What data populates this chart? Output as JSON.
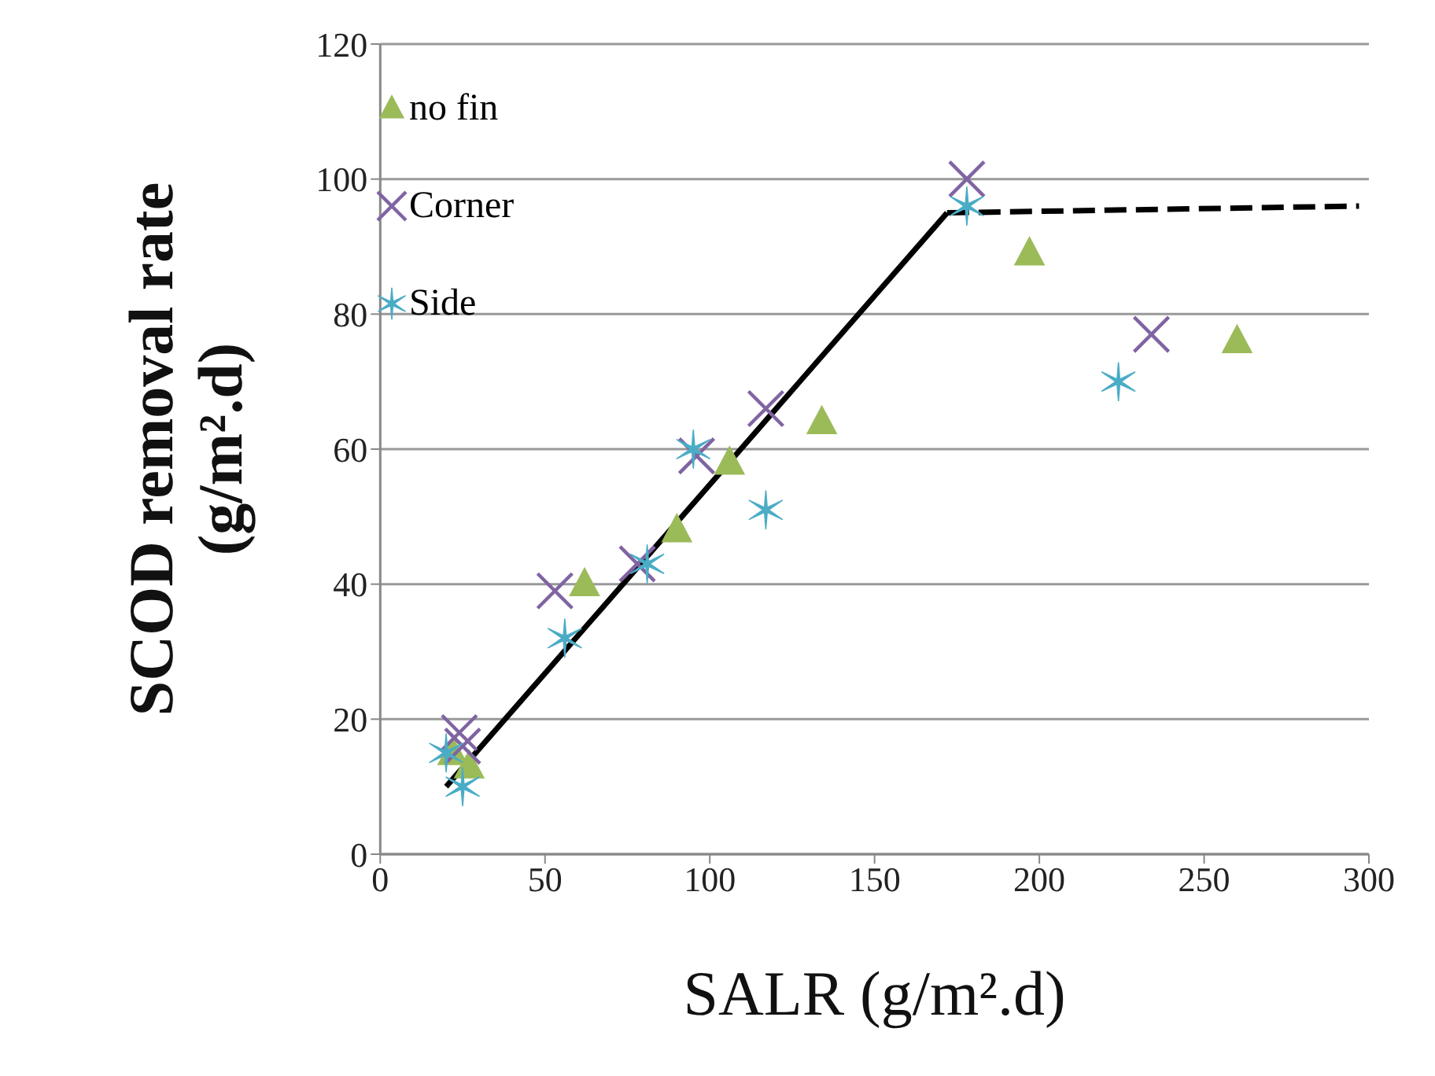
{
  "chart_data": {
    "type": "scatter",
    "xlabel": "SALR (g/m².d)",
    "ylabel": "SCOD removal rate (g/m².d)",
    "xlim": [
      0,
      300
    ],
    "xticks": [
      0,
      50,
      100,
      150,
      200,
      250,
      300
    ],
    "ylim": [
      0,
      120
    ],
    "yticks": [
      0,
      20,
      40,
      60,
      80,
      100,
      120
    ],
    "grid": "y",
    "legend": "top left",
    "series": [
      {
        "name": "no fin",
        "color": "#9bbb59",
        "marker": "triangle",
        "x": [
          22,
          27,
          62,
          90,
          106,
          134,
          197,
          260
        ],
        "values": [
          15,
          13,
          40,
          48,
          58,
          64,
          89,
          76
        ]
      },
      {
        "name": "Corner",
        "color": "#8064a2",
        "marker": "cross",
        "x": [
          24,
          25,
          53,
          78,
          96,
          117,
          178,
          234
        ],
        "values": [
          18,
          16,
          39,
          43,
          59,
          66,
          100,
          77
        ]
      },
      {
        "name": "Side",
        "color": "#4bacc6",
        "marker": "cross",
        "x": [
          20,
          25,
          56,
          81,
          95,
          117,
          178,
          224
        ],
        "values": [
          15,
          10,
          32,
          43,
          60,
          51,
          96,
          70
        ]
      },
      {
        "type": "line",
        "color": "#000000",
        "line_style": "solid",
        "marker": "none",
        "x": [
          20,
          172
        ],
        "values": [
          10,
          95
        ]
      },
      {
        "type": "line",
        "color": "#000000",
        "line_style": "dashed",
        "marker": "none",
        "x": [
          172,
          297
        ],
        "values": [
          95,
          96
        ]
      }
    ]
  }
}
